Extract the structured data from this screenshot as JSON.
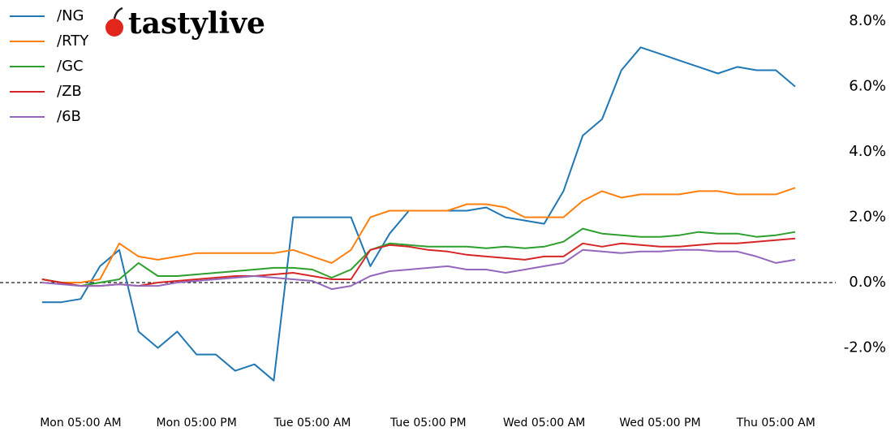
{
  "brand": "tastylive",
  "chart_data": {
    "type": "line",
    "categories": [
      null,
      null,
      null,
      "Mon 05:00 AM",
      null,
      null,
      null,
      null,
      null,
      "Mon 05:00 PM",
      null,
      null,
      null,
      null,
      null,
      "Tue 05:00 AM",
      null,
      null,
      null,
      null,
      null,
      "Tue 05:00 PM",
      null,
      null,
      null,
      null,
      null,
      "Wed 05:00 AM",
      null,
      null,
      null,
      null,
      null,
      "Wed 05:00 PM",
      null,
      null,
      null,
      null,
      null,
      "Thu 05:00 AM",
      null
    ],
    "series": [
      {
        "name": "/NG",
        "color": "#1f77b4",
        "values": [
          null,
          -0.6,
          -0.6,
          -0.5,
          0.5,
          1.0,
          -1.5,
          -2.0,
          -1.5,
          -2.2,
          -2.2,
          -2.7,
          -2.5,
          -3.0,
          2.0,
          2.0,
          2.0,
          2.0,
          0.5,
          1.5,
          2.2,
          2.2,
          2.2,
          2.2,
          2.3,
          2.0,
          1.9,
          1.8,
          2.8,
          4.5,
          5.0,
          6.5,
          7.2,
          7.0,
          6.8,
          6.6,
          6.4,
          6.6,
          6.5,
          6.5,
          6.0
        ]
      },
      {
        "name": "/RTY",
        "color": "#ff7f0e",
        "values": [
          null,
          0.1,
          0.0,
          0.0,
          0.1,
          1.2,
          0.8,
          0.7,
          0.8,
          0.9,
          0.9,
          0.9,
          0.9,
          0.9,
          1.0,
          0.8,
          0.6,
          1.0,
          2.0,
          2.2,
          2.2,
          2.2,
          2.2,
          2.4,
          2.4,
          2.3,
          2.0,
          2.0,
          2.0,
          2.5,
          2.8,
          2.6,
          2.7,
          2.7,
          2.7,
          2.8,
          2.8,
          2.7,
          2.7,
          2.7,
          2.9
        ]
      },
      {
        "name": "/GC",
        "color": "#2ca02c",
        "values": [
          null,
          0.1,
          0.0,
          -0.1,
          0.0,
          0.1,
          0.6,
          0.2,
          0.2,
          0.25,
          0.3,
          0.35,
          0.4,
          0.45,
          0.45,
          0.4,
          0.15,
          0.4,
          1.0,
          1.2,
          1.15,
          1.1,
          1.1,
          1.1,
          1.05,
          1.1,
          1.05,
          1.1,
          1.25,
          1.65,
          1.5,
          1.45,
          1.4,
          1.4,
          1.45,
          1.55,
          1.5,
          1.5,
          1.4,
          1.45,
          1.55
        ]
      },
      {
        "name": "/ZB",
        "color": "#d62728",
        "values": [
          null,
          0.1,
          0.0,
          -0.1,
          -0.1,
          -0.05,
          -0.1,
          0.0,
          0.05,
          0.1,
          0.15,
          0.2,
          0.2,
          0.25,
          0.3,
          0.2,
          0.1,
          0.1,
          1.0,
          1.15,
          1.1,
          1.0,
          0.95,
          0.85,
          0.8,
          0.75,
          0.7,
          0.8,
          0.8,
          1.2,
          1.1,
          1.2,
          1.15,
          1.1,
          1.1,
          1.15,
          1.2,
          1.2,
          1.25,
          1.3,
          1.35
        ]
      },
      {
        "name": "/6B",
        "color": "#9467bd",
        "values": [
          null,
          0.0,
          -0.05,
          -0.1,
          -0.1,
          -0.05,
          -0.1,
          -0.1,
          0.0,
          0.05,
          0.1,
          0.15,
          0.2,
          0.15,
          0.1,
          0.05,
          -0.2,
          -0.1,
          0.2,
          0.35,
          0.4,
          0.45,
          0.5,
          0.4,
          0.4,
          0.3,
          0.4,
          0.5,
          0.6,
          1.0,
          0.95,
          0.9,
          0.95,
          0.95,
          1.0,
          1.0,
          0.95,
          0.95,
          0.8,
          0.6,
          0.7
        ]
      }
    ],
    "ylim": [
      -3.9,
      8.4
    ],
    "yticks": [
      {
        "value": -2,
        "label": "-2.0%"
      },
      {
        "value": 0,
        "label": "0.0%"
      },
      {
        "value": 2,
        "label": "2.0%"
      },
      {
        "value": 4,
        "label": "4.0%"
      },
      {
        "value": 6,
        "label": "6.0%"
      },
      {
        "value": 8,
        "label": "8.0%"
      }
    ],
    "grid": false,
    "zero_line": true,
    "legend": "top-left"
  }
}
